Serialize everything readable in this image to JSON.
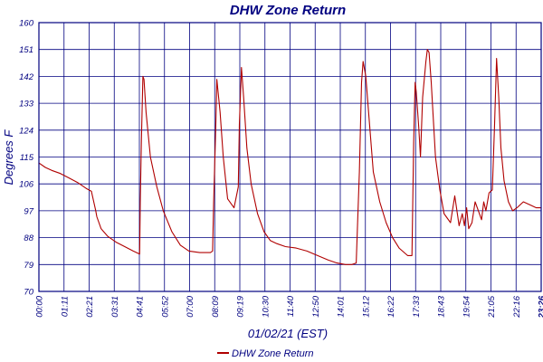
{
  "chart_data": {
    "type": "line",
    "title": "DHW Zone Return",
    "xlabel": "01/02/21 (EST)",
    "ylabel": "Degrees F",
    "ylim": [
      70,
      160
    ],
    "ytick_labels": [
      "70",
      "79",
      "88",
      "97",
      "106",
      "115",
      "124",
      "133",
      "142",
      "151",
      "160"
    ],
    "xtick_labels": [
      "00:00",
      "01:11",
      "02:21",
      "03:31",
      "04:41",
      "05:52",
      "07:00",
      "08:09",
      "09:19",
      "10:30",
      "11:40",
      "12:50",
      "14:01",
      "15:12",
      "16:22",
      "17:33",
      "18:43",
      "19:54",
      "21:05",
      "22:16",
      "23:26"
    ],
    "x_unit": "hours",
    "xlim": [
      0,
      23.43
    ],
    "grid": true,
    "legend_position": "bottom",
    "series": [
      {
        "name": "DHW Zone Return",
        "color": "#b00000",
        "x": [
          0.0,
          0.3,
          0.6,
          1.0,
          1.4,
          1.8,
          2.2,
          2.45,
          2.65,
          2.7,
          2.9,
          3.2,
          3.6,
          4.0,
          4.4,
          4.7,
          4.73,
          4.78,
          4.85,
          4.9,
          5.0,
          5.2,
          5.5,
          5.8,
          6.2,
          6.6,
          7.0,
          7.5,
          8.0,
          8.1,
          8.15,
          8.25,
          8.3,
          8.45,
          8.6,
          8.7,
          8.8,
          9.1,
          9.3,
          9.35,
          9.45,
          9.55,
          9.7,
          9.9,
          10.2,
          10.5,
          10.8,
          11.1,
          11.5,
          12.0,
          12.5,
          13.0,
          13.5,
          13.9,
          14.3,
          14.6,
          14.8,
          14.95,
          15.05,
          15.12,
          15.25,
          15.4,
          15.6,
          15.9,
          16.2,
          16.5,
          16.8,
          17.2,
          17.4,
          17.48,
          17.55,
          17.6,
          17.72,
          17.8,
          17.9,
          18.05,
          18.12,
          18.2,
          18.3,
          18.5,
          18.7,
          18.9,
          19.0,
          19.2,
          19.4,
          19.5,
          19.6,
          19.75,
          19.85,
          19.95,
          20.05,
          20.2,
          20.35,
          20.5,
          20.65,
          20.75,
          20.85,
          21.0,
          21.15,
          21.25,
          21.35,
          21.45,
          21.55,
          21.7,
          21.9,
          22.1,
          22.3,
          22.6,
          22.9,
          23.2,
          23.43
        ],
        "values": [
          113,
          111.5,
          110.5,
          109.5,
          108,
          106.5,
          104.5,
          103.5,
          97,
          95,
          91,
          88.5,
          86.5,
          85,
          83.5,
          82.5,
          100,
          120,
          142,
          141,
          130,
          115,
          105,
          97,
          90,
          85.5,
          83.5,
          83,
          83,
          83.5,
          100,
          125,
          141,
          130,
          115,
          108,
          101,
          98,
          105,
          126,
          145,
          135,
          118,
          106,
          96,
          90,
          87,
          86,
          85,
          84.5,
          83.5,
          82,
          80.5,
          79.5,
          79,
          79,
          79.5,
          110,
          140,
          147,
          142,
          128,
          110,
          100,
          93,
          88,
          84.5,
          82,
          82,
          120,
          140,
          137,
          125,
          115,
          135,
          147,
          151,
          150,
          140,
          115,
          104,
          96,
          95,
          93,
          102,
          97,
          92,
          96,
          92,
          98,
          91,
          93,
          100,
          97,
          94,
          100,
          97,
          103,
          104,
          125,
          148,
          135,
          118,
          107,
          100,
          97,
          98,
          100,
          99,
          98,
          98
        ]
      }
    ]
  }
}
